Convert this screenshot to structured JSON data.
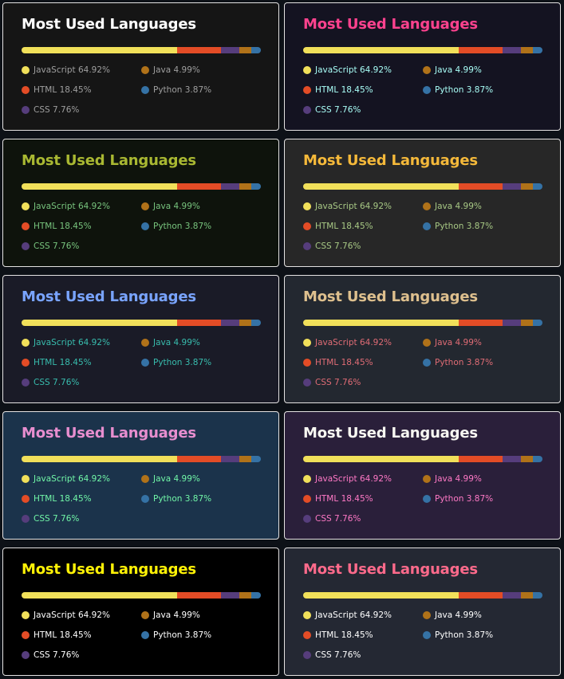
{
  "card_title": "Most Used Languages",
  "languages": [
    {
      "name": "JavaScript",
      "percent": 64.92,
      "percent_text": "64.92%",
      "color": "#f1e05a"
    },
    {
      "name": "HTML",
      "percent": 18.45,
      "percent_text": "18.45%",
      "color": "#e34c26"
    },
    {
      "name": "CSS",
      "percent": 7.76,
      "percent_text": "7.76%",
      "color": "#563d7c"
    },
    {
      "name": "Java",
      "percent": 4.99,
      "percent_text": "4.99%",
      "color": "#b07219"
    },
    {
      "name": "Python",
      "percent": 3.87,
      "percent_text": "3.87%",
      "color": "#3572A5"
    }
  ],
  "themes": [
    {
      "title_color": "#ffffff",
      "text_color": "#9f9f9f",
      "bg_color": "#151515",
      "border_color": "#e4e2e2"
    },
    {
      "title_color": "#fe428e",
      "text_color": "#a9fef7",
      "bg_color": "#141321",
      "border_color": "#e4e2e2"
    },
    {
      "title_color": "#a9b832",
      "text_color": "#78c57e",
      "bg_color": "#0e130c",
      "border_color": "#e4e2e2"
    },
    {
      "title_color": "#f5b93a",
      "text_color": "#a8c985",
      "bg_color": "#272727",
      "border_color": "#e4e2e2"
    },
    {
      "title_color": "#79a4ff",
      "text_color": "#38bdae",
      "bg_color": "#1a1b27",
      "border_color": "#e4e2e2"
    },
    {
      "title_color": "#dec08e",
      "text_color": "#e06c75",
      "bg_color": "#232830",
      "border_color": "#e4e2e2"
    },
    {
      "title_color": "#e78ecf",
      "text_color": "#71f7a8",
      "bg_color": "#1b334b",
      "border_color": "#e4e2e2"
    },
    {
      "title_color": "#f8f8f2",
      "text_color": "#ff79c6",
      "bg_color": "#2a1f3a",
      "border_color": "#e4e2e2"
    },
    {
      "title_color": "#fff206",
      "text_color": "#ffffff",
      "bg_color": "#000000",
      "border_color": "#e4e2e2"
    },
    {
      "title_color": "#fe6a8b",
      "text_color": "#ffffff",
      "bg_color": "#242833",
      "border_color": "#e4e2e2"
    }
  ]
}
